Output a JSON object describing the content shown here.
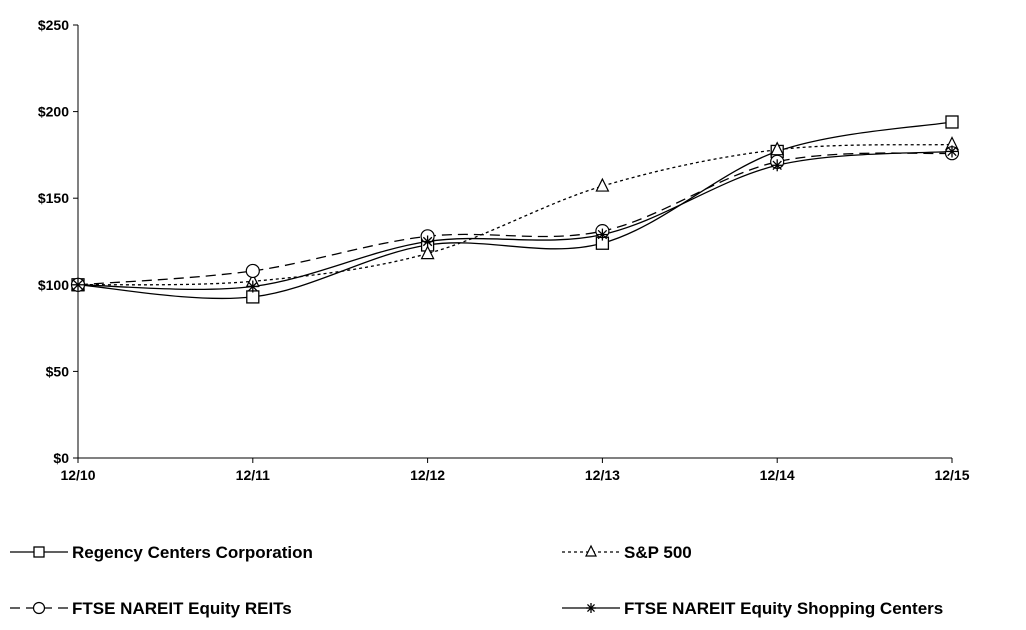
{
  "chart_data": {
    "type": "line",
    "title": "",
    "xlabel": "",
    "ylabel": "",
    "categories": [
      "12/10",
      "12/11",
      "12/12",
      "12/13",
      "12/14",
      "12/15"
    ],
    "y_ticks": [
      "$0",
      "$50",
      "$100",
      "$150",
      "$200",
      "$250"
    ],
    "ylim": [
      0,
      250
    ],
    "grid": false,
    "legend_position": "bottom",
    "series": [
      {
        "name": "Regency Centers Corporation",
        "values": [
          100,
          93,
          123,
          124,
          177,
          194
        ],
        "marker": "square",
        "dash": "solid",
        "color": "#000000"
      },
      {
        "name": "S&P 500",
        "values": [
          100,
          102,
          118,
          157,
          178,
          181
        ],
        "marker": "triangle",
        "dash": "dotted",
        "color": "#000000"
      },
      {
        "name": "FTSE NAREIT Equity REITs",
        "values": [
          100,
          108,
          128,
          131,
          171,
          176
        ],
        "marker": "circle",
        "dash": "dashed",
        "color": "#000000"
      },
      {
        "name": "FTSE NAREIT Equity Shopping Centers",
        "values": [
          100,
          99,
          125,
          129,
          169,
          177
        ],
        "marker": "star",
        "dash": "solid",
        "color": "#000000"
      }
    ]
  }
}
